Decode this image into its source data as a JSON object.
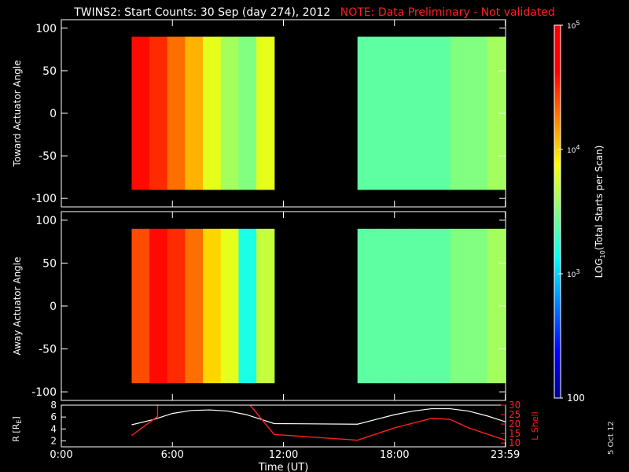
{
  "title": {
    "main": "TWINS2: Start Counts: 30 Sep (day 274), 2012",
    "note": "NOTE: Data Preliminary - Not validated",
    "note_color": "#ff2020"
  },
  "date_stamp": "5 Oct 12",
  "colors": {
    "background": "#000000",
    "axis": "#ffffff",
    "lshell": "#ff2020",
    "radius": "#ffffff"
  },
  "chart_data": [
    {
      "type": "heatmap",
      "ylabel": "Toward Actuator Angle",
      "xlim": [
        0,
        24
      ],
      "ylim": [
        -110,
        110
      ],
      "yticks": [
        -100,
        -50,
        0,
        50,
        100
      ],
      "colorscale": "log",
      "data_blocks": [
        {
          "t_start": 3.8,
          "t_end": 11.5,
          "angle_range": [
            -90,
            90
          ],
          "log_value_trend": [
            4.6,
            4.5,
            4.3,
            4.1,
            3.8,
            3.6,
            3.5,
            3.8
          ]
        },
        {
          "t_start": 16.0,
          "t_end": 24.0,
          "angle_range": [
            -90,
            90
          ],
          "log_value_trend": [
            3.4,
            3.4,
            3.4,
            3.4,
            3.4,
            3.5,
            3.5,
            3.6
          ]
        }
      ]
    },
    {
      "type": "heatmap",
      "ylabel": "Away Actuator Angle",
      "xlim": [
        0,
        24
      ],
      "ylim": [
        -110,
        110
      ],
      "yticks": [
        -100,
        -50,
        0,
        50,
        100
      ],
      "colorscale": "log",
      "data_blocks": [
        {
          "t_start": 3.8,
          "t_end": 11.5,
          "angle_range": [
            -90,
            90
          ],
          "log_value_trend": [
            4.4,
            4.6,
            4.5,
            4.3,
            4.0,
            3.8,
            3.2,
            3.7
          ]
        },
        {
          "t_start": 16.0,
          "t_end": 24.0,
          "angle_range": [
            -90,
            90
          ],
          "log_value_trend": [
            3.4,
            3.4,
            3.4,
            3.4,
            3.4,
            3.5,
            3.5,
            3.6
          ]
        }
      ]
    },
    {
      "type": "line",
      "ylabel": "R [R",
      "ylabel_sub": "E",
      "ylabel_close": "]",
      "y2label": "L Shell",
      "xlabel": "Time (UT)",
      "xlim": [
        0,
        24
      ],
      "xticks": [
        0,
        6,
        12,
        18,
        23.983
      ],
      "xtick_labels": [
        "0:00",
        "6:00",
        "12:00",
        "18:00",
        "23:59"
      ],
      "ylim": [
        1,
        8
      ],
      "yticks": [
        2,
        4,
        6,
        8
      ],
      "y2lim": [
        8,
        30
      ],
      "y2ticks": [
        10,
        15,
        20,
        25,
        30
      ],
      "series": [
        {
          "key": "radius",
          "axis": "left",
          "x": [
            3.8,
            5.0,
            6.0,
            7.0,
            8.0,
            9.0,
            10.0,
            11.0,
            11.5,
            16.0,
            17.0,
            18.0,
            19.0,
            20.0,
            21.0,
            22.0,
            23.0,
            24.0
          ],
          "y": [
            4.7,
            5.6,
            6.6,
            7.1,
            7.2,
            7.0,
            6.4,
            5.4,
            4.9,
            4.8,
            5.6,
            6.4,
            7.0,
            7.4,
            7.4,
            7.0,
            6.2,
            5.2
          ]
        },
        {
          "key": "lshell",
          "axis": "right",
          "segments": [
            {
              "x": [
                3.8,
                5.2,
                5.2
              ],
              "y": [
                14.0,
                24.0,
                30.0
              ]
            },
            {
              "x": [
                10.2,
                11.5,
                16.0,
                18.0,
                20.0,
                21.0,
                22.0,
                24.0
              ],
              "y": [
                30.0,
                14.5,
                11.5,
                18.0,
                23.0,
                22.5,
                18.0,
                11.5
              ]
            }
          ]
        }
      ]
    }
  ],
  "colorbar": {
    "label": "LOG",
    "label_sub": "10",
    "label_rest": "(Total Starts per Scan)",
    "ticks": [
      {
        "value": 100,
        "label": "100"
      },
      {
        "value": 1000,
        "label": "10",
        "exp": "3"
      },
      {
        "value": 10000,
        "label": "10",
        "exp": "4"
      },
      {
        "value": 100000,
        "label": "10",
        "exp": "5"
      }
    ],
    "vlim": [
      100,
      100000
    ]
  }
}
